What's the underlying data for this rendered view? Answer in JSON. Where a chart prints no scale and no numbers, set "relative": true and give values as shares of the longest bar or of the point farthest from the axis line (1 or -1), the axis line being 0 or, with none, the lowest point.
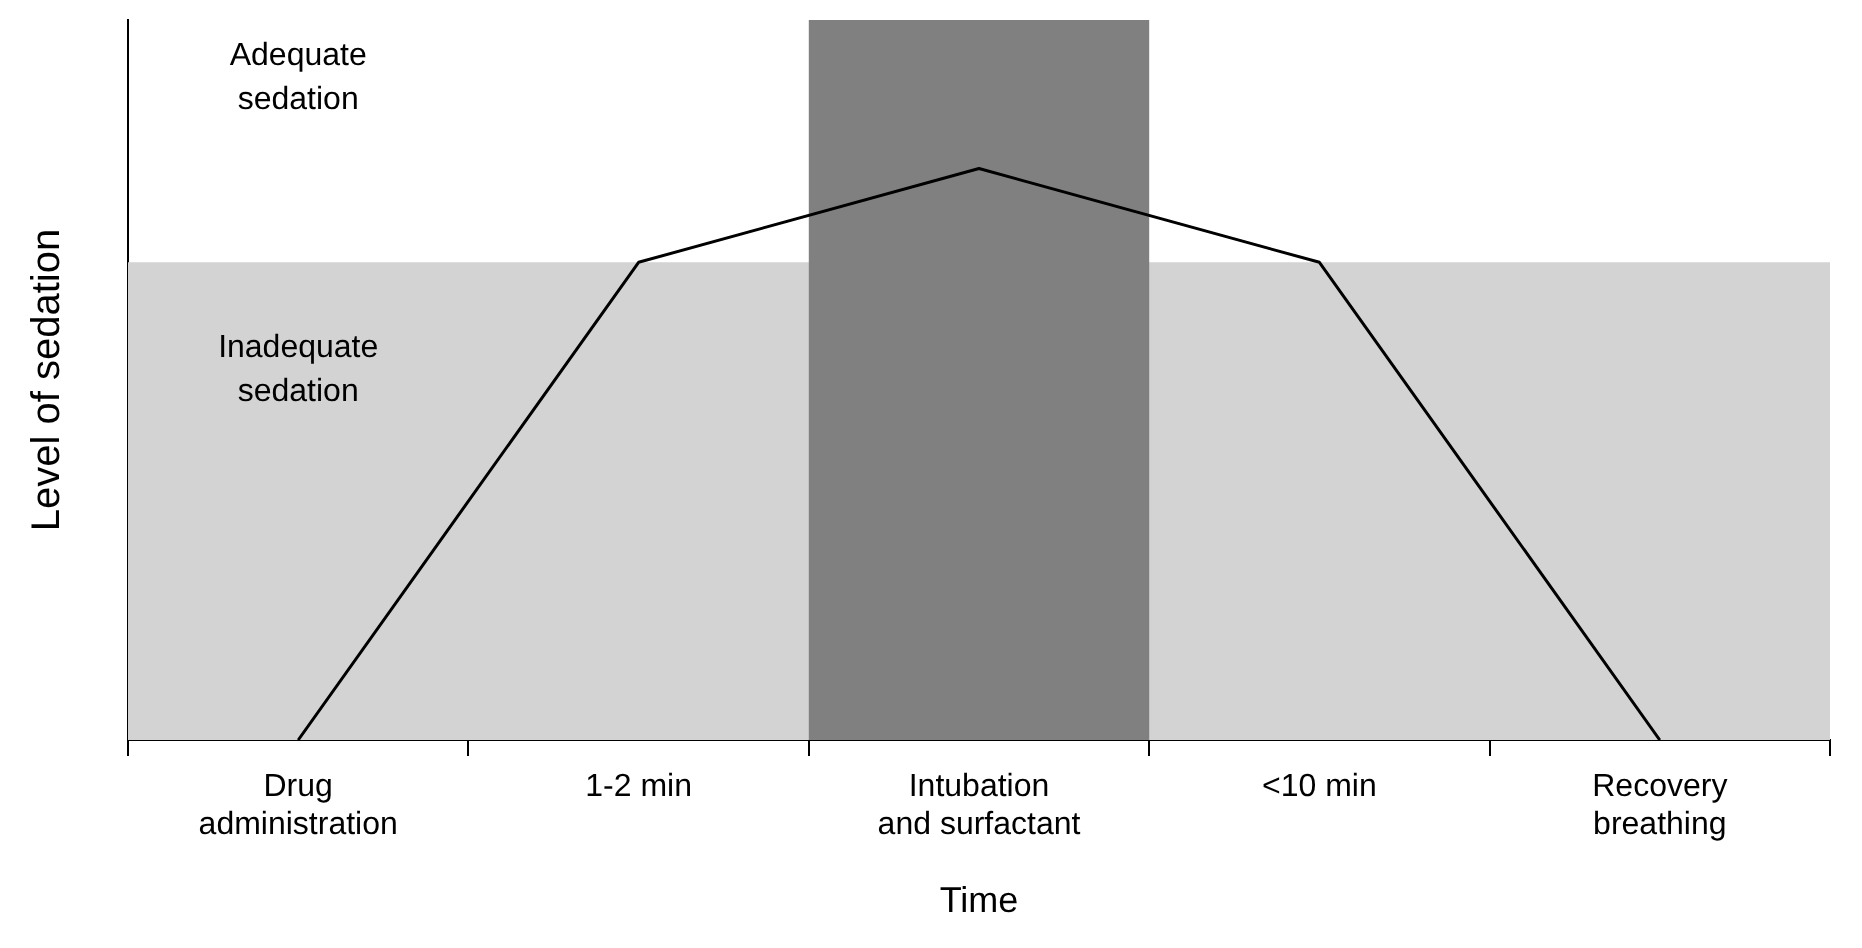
{
  "chart_data": {
    "type": "line",
    "relative": true,
    "xlabel": "Time",
    "ylabel": "Level of sedation",
    "categories": [
      "Drug administration",
      "1-2 min",
      "Intubation and surfactant",
      "<10 min",
      "Recovery breathing"
    ],
    "series": [
      {
        "color": "#000000",
        "values": [
          0,
          0.836,
          1,
          0.836,
          0
        ]
      }
    ],
    "bands": [
      {
        "axis": "y",
        "from": 0,
        "to": 0.836,
        "label": "Inadequate sedation",
        "color": "#d3d3d3"
      },
      {
        "axis": "x",
        "from": "Intubation and surfactant",
        "to": "Intubation and surfactant",
        "color": "#808080"
      }
    ],
    "annotations": [
      "Adequate sedation"
    ]
  }
}
